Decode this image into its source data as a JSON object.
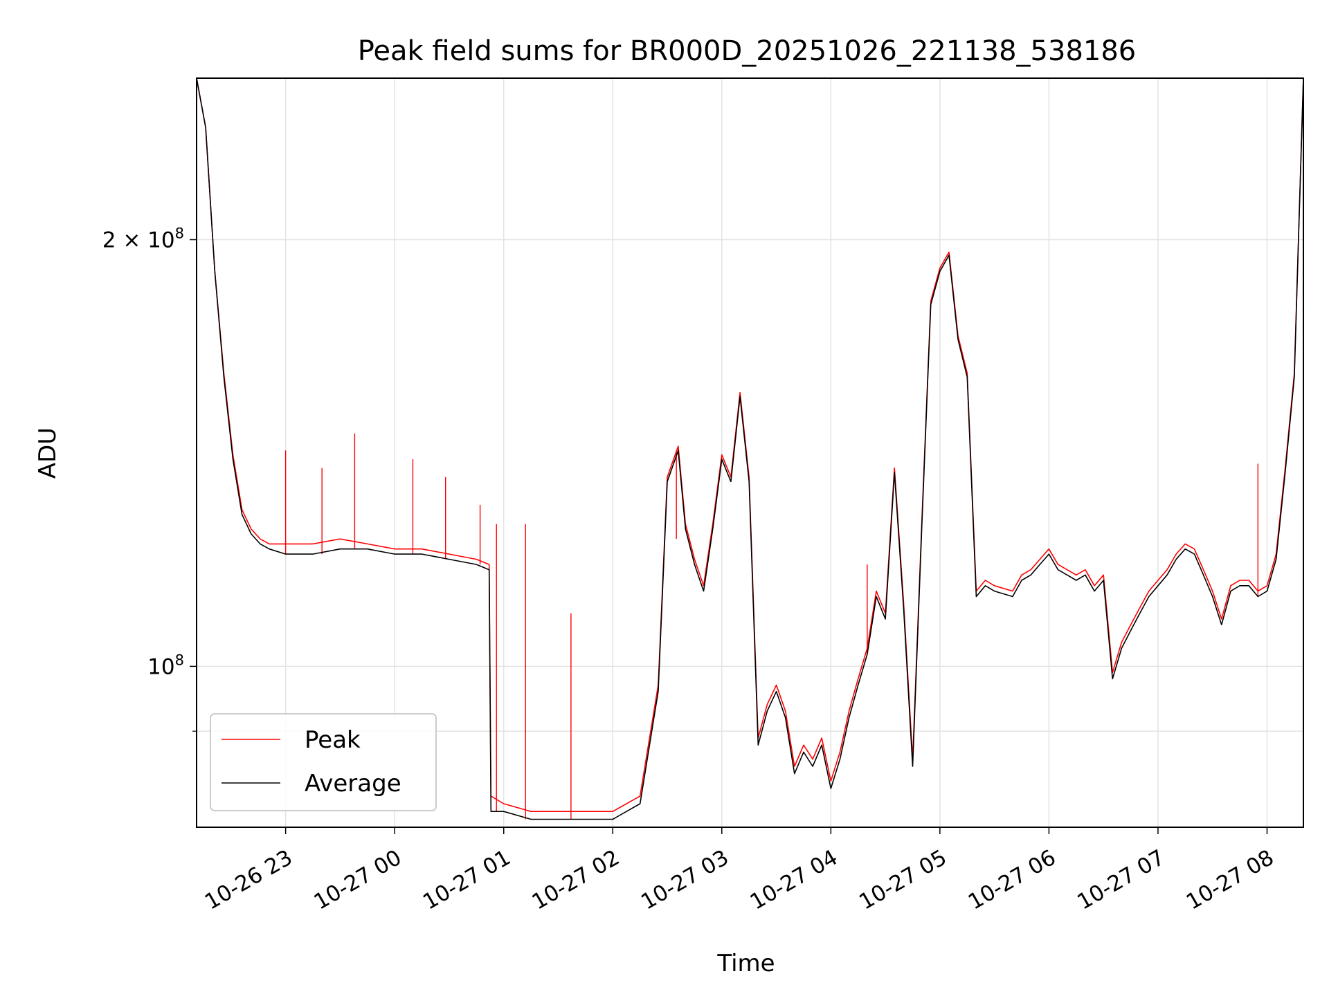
{
  "chart_data": {
    "type": "line",
    "title": "Peak field sums for BR000D_20251026_221138_538186",
    "xlabel": "Time",
    "ylabel": "ADU",
    "y_scale": "log",
    "x_range": [
      "2025-10-26 22:11",
      "2025-10-27 08:20"
    ],
    "ylim": [
      77000000,
      260000000
    ],
    "grid": true,
    "legend_position": "lower-left",
    "x_ticks": [
      {
        "t": "2025-10-26 23:00",
        "label": "10-26 23"
      },
      {
        "t": "2025-10-27 00:00",
        "label": "10-27 00"
      },
      {
        "t": "2025-10-27 01:00",
        "label": "10-27 01"
      },
      {
        "t": "2025-10-27 02:00",
        "label": "10-27 02"
      },
      {
        "t": "2025-10-27 03:00",
        "label": "10-27 03"
      },
      {
        "t": "2025-10-27 04:00",
        "label": "10-27 04"
      },
      {
        "t": "2025-10-27 05:00",
        "label": "10-27 05"
      },
      {
        "t": "2025-10-27 06:00",
        "label": "10-27 06"
      },
      {
        "t": "2025-10-27 07:00",
        "label": "10-27 07"
      },
      {
        "t": "2025-10-27 08:00",
        "label": "10-27 08"
      }
    ],
    "y_ticks": [
      {
        "value": 100000000,
        "mantissa": "",
        "base": "10",
        "exponent": "8"
      },
      {
        "value": 200000000,
        "mantissa": "2 × ",
        "base": "10",
        "exponent": "8"
      }
    ],
    "y_minor_ticks": [
      90000000
    ],
    "series": [
      {
        "name": "Average",
        "color": "#000000",
        "x": [
          "2025-10-26 22:11",
          "2025-10-26 22:16",
          "2025-10-26 22:21",
          "2025-10-26 22:26",
          "2025-10-26 22:31",
          "2025-10-26 22:36",
          "2025-10-26 22:41",
          "2025-10-26 22:46",
          "2025-10-26 22:51",
          "2025-10-26 23:00",
          "2025-10-26 23:15",
          "2025-10-26 23:30",
          "2025-10-26 23:45",
          "2025-10-27 00:00",
          "2025-10-27 00:15",
          "2025-10-27 00:30",
          "2025-10-27 00:45",
          "2025-10-27 00:52",
          "2025-10-27 00:53",
          "2025-10-27 01:00",
          "2025-10-27 01:15",
          "2025-10-27 01:30",
          "2025-10-27 01:45",
          "2025-10-27 02:00",
          "2025-10-27 02:15",
          "2025-10-27 02:25",
          "2025-10-27 02:30",
          "2025-10-27 02:36",
          "2025-10-27 02:40",
          "2025-10-27 02:45",
          "2025-10-27 02:50",
          "2025-10-27 02:55",
          "2025-10-27 03:00",
          "2025-10-27 03:05",
          "2025-10-27 03:10",
          "2025-10-27 03:15",
          "2025-10-27 03:20",
          "2025-10-27 03:25",
          "2025-10-27 03:30",
          "2025-10-27 03:35",
          "2025-10-27 03:40",
          "2025-10-27 03:45",
          "2025-10-27 03:50",
          "2025-10-27 03:55",
          "2025-10-27 04:00",
          "2025-10-27 04:05",
          "2025-10-27 04:10",
          "2025-10-27 04:15",
          "2025-10-27 04:20",
          "2025-10-27 04:25",
          "2025-10-27 04:30",
          "2025-10-27 04:35",
          "2025-10-27 04:40",
          "2025-10-27 04:45",
          "2025-10-27 04:50",
          "2025-10-27 04:55",
          "2025-10-27 05:00",
          "2025-10-27 05:05",
          "2025-10-27 05:10",
          "2025-10-27 05:15",
          "2025-10-27 05:20",
          "2025-10-27 05:25",
          "2025-10-27 05:30",
          "2025-10-27 05:40",
          "2025-10-27 05:45",
          "2025-10-27 05:50",
          "2025-10-27 05:55",
          "2025-10-27 06:00",
          "2025-10-27 06:05",
          "2025-10-27 06:10",
          "2025-10-27 06:15",
          "2025-10-27 06:20",
          "2025-10-27 06:25",
          "2025-10-27 06:30",
          "2025-10-27 06:35",
          "2025-10-27 06:40",
          "2025-10-27 06:45",
          "2025-10-27 06:50",
          "2025-10-27 06:55",
          "2025-10-27 07:00",
          "2025-10-27 07:05",
          "2025-10-27 07:10",
          "2025-10-27 07:15",
          "2025-10-27 07:20",
          "2025-10-27 07:25",
          "2025-10-27 07:30",
          "2025-10-27 07:35",
          "2025-10-27 07:40",
          "2025-10-27 07:45",
          "2025-10-27 07:50",
          "2025-10-27 07:55",
          "2025-10-27 08:00",
          "2025-10-27 08:05",
          "2025-10-27 08:10",
          "2025-10-27 08:15",
          "2025-10-27 08:20"
        ],
        "y": [
          260000000,
          240000000,
          190000000,
          160000000,
          140000000,
          128000000,
          124000000,
          122000000,
          121000000,
          120000000,
          120000000,
          121000000,
          121000000,
          120000000,
          120000000,
          119000000,
          118000000,
          117000000,
          79000000,
          79000000,
          78000000,
          78000000,
          78000000,
          78000000,
          80000000,
          96000000,
          135000000,
          142000000,
          125000000,
          118000000,
          113000000,
          125000000,
          140000000,
          135000000,
          155000000,
          135000000,
          88000000,
          93000000,
          96000000,
          92000000,
          84000000,
          87000000,
          85000000,
          88000000,
          82000000,
          86000000,
          92000000,
          97000000,
          102000000,
          112000000,
          108000000,
          137000000,
          110000000,
          85000000,
          125000000,
          180000000,
          190000000,
          195000000,
          170000000,
          160000000,
          112000000,
          114000000,
          113000000,
          112000000,
          115000000,
          116000000,
          118000000,
          120000000,
          117000000,
          116000000,
          115000000,
          116000000,
          113000000,
          115000000,
          98000000,
          103000000,
          106000000,
          109000000,
          112000000,
          114000000,
          116000000,
          119000000,
          121000000,
          120000000,
          116000000,
          112000000,
          107000000,
          113000000,
          114000000,
          114000000,
          112000000,
          113000000,
          119000000,
          137000000,
          160000000,
          260000000
        ]
      },
      {
        "name": "Peak",
        "color": "#ff0000",
        "x": [
          "2025-10-26 22:11",
          "2025-10-26 22:16",
          "2025-10-26 22:21",
          "2025-10-26 22:26",
          "2025-10-26 22:31",
          "2025-10-26 22:36",
          "2025-10-26 22:41",
          "2025-10-26 22:46",
          "2025-10-26 22:51",
          "2025-10-26 23:00",
          "2025-10-26 23:15",
          "2025-10-26 23:30",
          "2025-10-26 23:45",
          "2025-10-27 00:00",
          "2025-10-27 00:15",
          "2025-10-27 00:30",
          "2025-10-27 00:45",
          "2025-10-27 00:52",
          "2025-10-27 00:53",
          "2025-10-27 01:00",
          "2025-10-27 01:15",
          "2025-10-27 01:30",
          "2025-10-27 01:45",
          "2025-10-27 02:00",
          "2025-10-27 02:15",
          "2025-10-27 02:25",
          "2025-10-27 02:30",
          "2025-10-27 02:36",
          "2025-10-27 02:40",
          "2025-10-27 02:45",
          "2025-10-27 02:50",
          "2025-10-27 02:55",
          "2025-10-27 03:00",
          "2025-10-27 03:05",
          "2025-10-27 03:10",
          "2025-10-27 03:15",
          "2025-10-27 03:20",
          "2025-10-27 03:25",
          "2025-10-27 03:30",
          "2025-10-27 03:35",
          "2025-10-27 03:40",
          "2025-10-27 03:45",
          "2025-10-27 03:50",
          "2025-10-27 03:55",
          "2025-10-27 04:00",
          "2025-10-27 04:05",
          "2025-10-27 04:10",
          "2025-10-27 04:15",
          "2025-10-27 04:20",
          "2025-10-27 04:25",
          "2025-10-27 04:30",
          "2025-10-27 04:35",
          "2025-10-27 04:40",
          "2025-10-27 04:45",
          "2025-10-27 04:50",
          "2025-10-27 04:55",
          "2025-10-27 05:00",
          "2025-10-27 05:05",
          "2025-10-27 05:10",
          "2025-10-27 05:15",
          "2025-10-27 05:20",
          "2025-10-27 05:25",
          "2025-10-27 05:30",
          "2025-10-27 05:40",
          "2025-10-27 05:45",
          "2025-10-27 05:50",
          "2025-10-27 05:55",
          "2025-10-27 06:00",
          "2025-10-27 06:05",
          "2025-10-27 06:10",
          "2025-10-27 06:15",
          "2025-10-27 06:20",
          "2025-10-27 06:25",
          "2025-10-27 06:30",
          "2025-10-27 06:35",
          "2025-10-27 06:40",
          "2025-10-27 06:45",
          "2025-10-27 06:50",
          "2025-10-27 06:55",
          "2025-10-27 07:00",
          "2025-10-27 07:05",
          "2025-10-27 07:10",
          "2025-10-27 07:15",
          "2025-10-27 07:20",
          "2025-10-27 07:25",
          "2025-10-27 07:30",
          "2025-10-27 07:35",
          "2025-10-27 07:40",
          "2025-10-27 07:45",
          "2025-10-27 07:50",
          "2025-10-27 07:55",
          "2025-10-27 08:00",
          "2025-10-27 08:05",
          "2025-10-27 08:10",
          "2025-10-27 08:15",
          "2025-10-27 08:20"
        ],
        "y": [
          260000000,
          240000000,
          190000000,
          161000000,
          141000000,
          129000000,
          125000000,
          123000000,
          122000000,
          122000000,
          122000000,
          123000000,
          122000000,
          121000000,
          121000000,
          120000000,
          119000000,
          118000000,
          81000000,
          80000000,
          79000000,
          79000000,
          79000000,
          79000000,
          81000000,
          97000000,
          136000000,
          143000000,
          126000000,
          119000000,
          114000000,
          126000000,
          141000000,
          136000000,
          156000000,
          136000000,
          89000000,
          94000000,
          97000000,
          93000000,
          85000000,
          88000000,
          86000000,
          89000000,
          83000000,
          87000000,
          93000000,
          98000000,
          103000000,
          113000000,
          109000000,
          138000000,
          111000000,
          86000000,
          126000000,
          181000000,
          191000000,
          196000000,
          171000000,
          161000000,
          113000000,
          115000000,
          114000000,
          113000000,
          116000000,
          117000000,
          119000000,
          121000000,
          118000000,
          117000000,
          116000000,
          117000000,
          114000000,
          116000000,
          99000000,
          104000000,
          107000000,
          110000000,
          113000000,
          115000000,
          117000000,
          120000000,
          122000000,
          121000000,
          117000000,
          113000000,
          108000000,
          114000000,
          115000000,
          115000000,
          113000000,
          114000000,
          120000000,
          138000000,
          161000000,
          260000000
        ],
        "spikes": [
          {
            "t": "2025-10-26 23:00",
            "y": 142000000
          },
          {
            "t": "2025-10-26 23:20",
            "y": 138000000
          },
          {
            "t": "2025-10-26 23:38",
            "y": 146000000
          },
          {
            "t": "2025-10-27 00:10",
            "y": 140000000
          },
          {
            "t": "2025-10-27 00:28",
            "y": 136000000
          },
          {
            "t": "2025-10-27 00:47",
            "y": 130000000
          },
          {
            "t": "2025-10-27 00:56",
            "y": 126000000
          },
          {
            "t": "2025-10-27 01:12",
            "y": 126000000
          },
          {
            "t": "2025-10-27 01:37",
            "y": 109000000
          },
          {
            "t": "2025-10-27 02:35",
            "y": 123000000
          },
          {
            "t": "2025-10-27 04:20",
            "y": 118000000
          },
          {
            "t": "2025-10-27 07:55",
            "y": 139000000
          }
        ]
      }
    ]
  }
}
